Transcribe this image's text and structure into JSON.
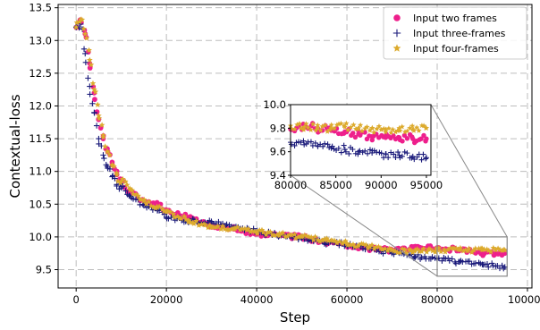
{
  "chart_data": {
    "type": "scatter",
    "title": "",
    "xlabel": "Step",
    "ylabel": "Contextual-loss",
    "xlim": [
      -4000,
      101000
    ],
    "ylim": [
      9.22,
      13.55
    ],
    "xticks": [
      0,
      20000,
      40000,
      60000,
      80000,
      100000
    ],
    "xtick_labels": [
      "0",
      "20000",
      "40000",
      "60000",
      "80000",
      "100000"
    ],
    "yticks": [
      9.5,
      10.0,
      10.5,
      11.0,
      11.5,
      12.0,
      12.5,
      13.0,
      13.5
    ],
    "ytick_labels": [
      "9.5",
      "10.0",
      "10.5",
      "11.0",
      "11.5",
      "12.0",
      "12.5",
      "13.0",
      "13.5"
    ],
    "grid": true,
    "legend_position": "top-right",
    "series": [
      {
        "name": "Input two frames",
        "marker": "circle",
        "color": "#ee1f8c",
        "x": [
          0,
          1000,
          2000,
          3000,
          4000,
          5000,
          6000,
          7000,
          8000,
          9000,
          10000,
          12000,
          15000,
          18000,
          20000,
          25000,
          30000,
          35000,
          40000,
          45000,
          50000,
          55000,
          60000,
          65000,
          70000,
          75000,
          80000,
          85000,
          90000,
          95000
        ],
        "y": [
          13.2,
          13.3,
          13.1,
          12.65,
          12.2,
          11.8,
          11.5,
          11.3,
          11.1,
          10.95,
          10.85,
          10.7,
          10.55,
          10.5,
          10.4,
          10.3,
          10.18,
          10.12,
          10.05,
          10.02,
          10.0,
          9.92,
          9.88,
          9.82,
          9.8,
          9.82,
          9.83,
          9.8,
          9.75,
          9.75
        ]
      },
      {
        "name": "Input three-frames",
        "marker": "plus",
        "color": "#1a1a7a",
        "x": [
          0,
          1000,
          2000,
          3000,
          4000,
          5000,
          6000,
          7000,
          8000,
          9000,
          10000,
          12000,
          15000,
          18000,
          20000,
          25000,
          30000,
          35000,
          40000,
          45000,
          50000,
          55000,
          60000,
          65000,
          70000,
          75000,
          80000,
          85000,
          90000,
          95000
        ],
        "y": [
          13.2,
          13.25,
          12.8,
          12.3,
          11.9,
          11.5,
          11.25,
          11.05,
          10.92,
          10.8,
          10.75,
          10.62,
          10.48,
          10.4,
          10.3,
          10.25,
          10.22,
          10.15,
          10.08,
          10.02,
          9.98,
          9.92,
          9.88,
          9.82,
          9.75,
          9.7,
          9.66,
          9.62,
          9.58,
          9.54
        ]
      },
      {
        "name": "Input four-frames",
        "marker": "star",
        "color": "#dcaa2c",
        "x": [
          0,
          1000,
          2000,
          3000,
          4000,
          5000,
          6000,
          7000,
          8000,
          9000,
          10000,
          12000,
          15000,
          18000,
          20000,
          25000,
          30000,
          35000,
          40000,
          45000,
          50000,
          55000,
          60000,
          65000,
          70000,
          75000,
          80000,
          85000,
          90000,
          95000
        ],
        "y": [
          13.2,
          13.32,
          13.1,
          12.7,
          12.25,
          11.85,
          11.55,
          11.3,
          11.1,
          10.95,
          10.85,
          10.72,
          10.55,
          10.45,
          10.38,
          10.25,
          10.15,
          10.12,
          10.08,
          10.05,
          10.0,
          9.95,
          9.9,
          9.85,
          9.8,
          9.78,
          9.8,
          9.8,
          9.8,
          9.8
        ]
      }
    ],
    "inset": {
      "xlim": [
        80000,
        95500
      ],
      "ylim": [
        9.4,
        10.0
      ],
      "xticks": [
        80000,
        85000,
        90000,
        95000
      ],
      "xtick_labels": [
        "80000",
        "85000",
        "90000",
        "95000"
      ],
      "yticks": [
        9.4,
        9.6,
        9.8,
        10.0
      ],
      "ytick_labels": [
        "9.4",
        "9.6",
        "9.8",
        "10.0"
      ],
      "series": [
        {
          "name": "Input two frames",
          "x": [
            80000,
            81500,
            83000,
            84500,
            86000,
            87500,
            89000,
            90500,
            92000,
            93500,
            95000
          ],
          "y": [
            9.79,
            9.82,
            9.8,
            9.78,
            9.77,
            9.75,
            9.73,
            9.72,
            9.72,
            9.71,
            9.71
          ]
        },
        {
          "name": "Input three-frames",
          "x": [
            80000,
            81500,
            83000,
            84500,
            86000,
            87500,
            89000,
            90500,
            92000,
            93500,
            95000
          ],
          "y": [
            9.68,
            9.66,
            9.65,
            9.63,
            9.62,
            9.6,
            9.59,
            9.58,
            9.57,
            9.56,
            9.55
          ]
        },
        {
          "name": "Input four-frames",
          "x": [
            80000,
            81500,
            83000,
            84500,
            86000,
            87500,
            89000,
            90500,
            92000,
            93500,
            95000
          ],
          "y": [
            9.82,
            9.81,
            9.8,
            9.8,
            9.81,
            9.8,
            9.8,
            9.79,
            9.8,
            9.79,
            9.8
          ]
        }
      ]
    }
  }
}
